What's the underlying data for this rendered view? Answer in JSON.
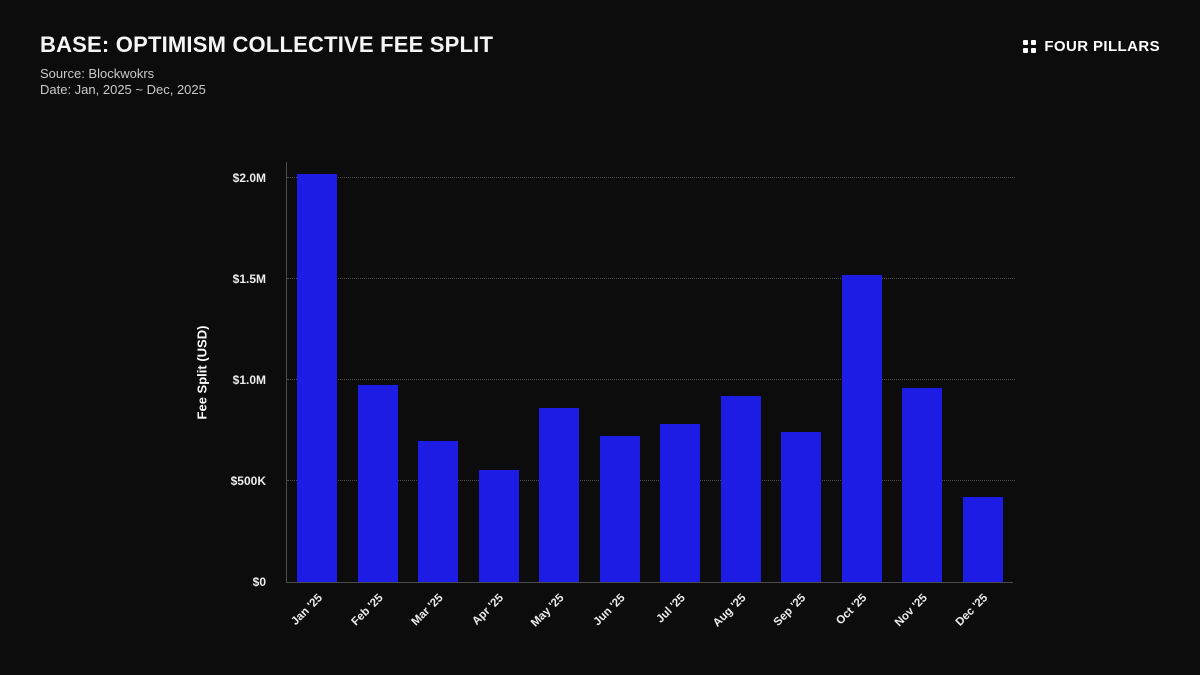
{
  "header": {
    "title": "BASE: OPTIMISM COLLECTIVE FEE SPLIT",
    "source": "Source: Blockwokrs",
    "date_range": "Date: Jan, 2025 ~ Dec, 2025",
    "brand": "FOUR PILLARS"
  },
  "chart_data": {
    "type": "bar",
    "title": "BASE: OPTIMISM COLLECTIVE FEE SPLIT",
    "categories": [
      "Jan '25",
      "Feb '25",
      "Mar '25",
      "Apr '25",
      "May '25",
      "Jun '25",
      "Jul '25",
      "Aug '25",
      "Sep '25",
      "Oct '25",
      "Nov '25",
      "Dec '25"
    ],
    "values": [
      2020000,
      975000,
      700000,
      555000,
      860000,
      725000,
      785000,
      920000,
      745000,
      1520000,
      960000,
      420000
    ],
    "xlabel": "",
    "ylabel": "Fee Split (USD)",
    "ylim": [
      0,
      2080000
    ],
    "yticks": [
      {
        "value": 0,
        "label": "$0"
      },
      {
        "value": 500000,
        "label": "$500K"
      },
      {
        "value": 1000000,
        "label": "$1.0M"
      },
      {
        "value": 1500000,
        "label": "$1.5M"
      },
      {
        "value": 2000000,
        "label": "$2.0M"
      }
    ],
    "bar_color": "#1d1ce4",
    "background": "#0c0c0c",
    "grid": "dotted-horizontal",
    "legend": "none"
  }
}
